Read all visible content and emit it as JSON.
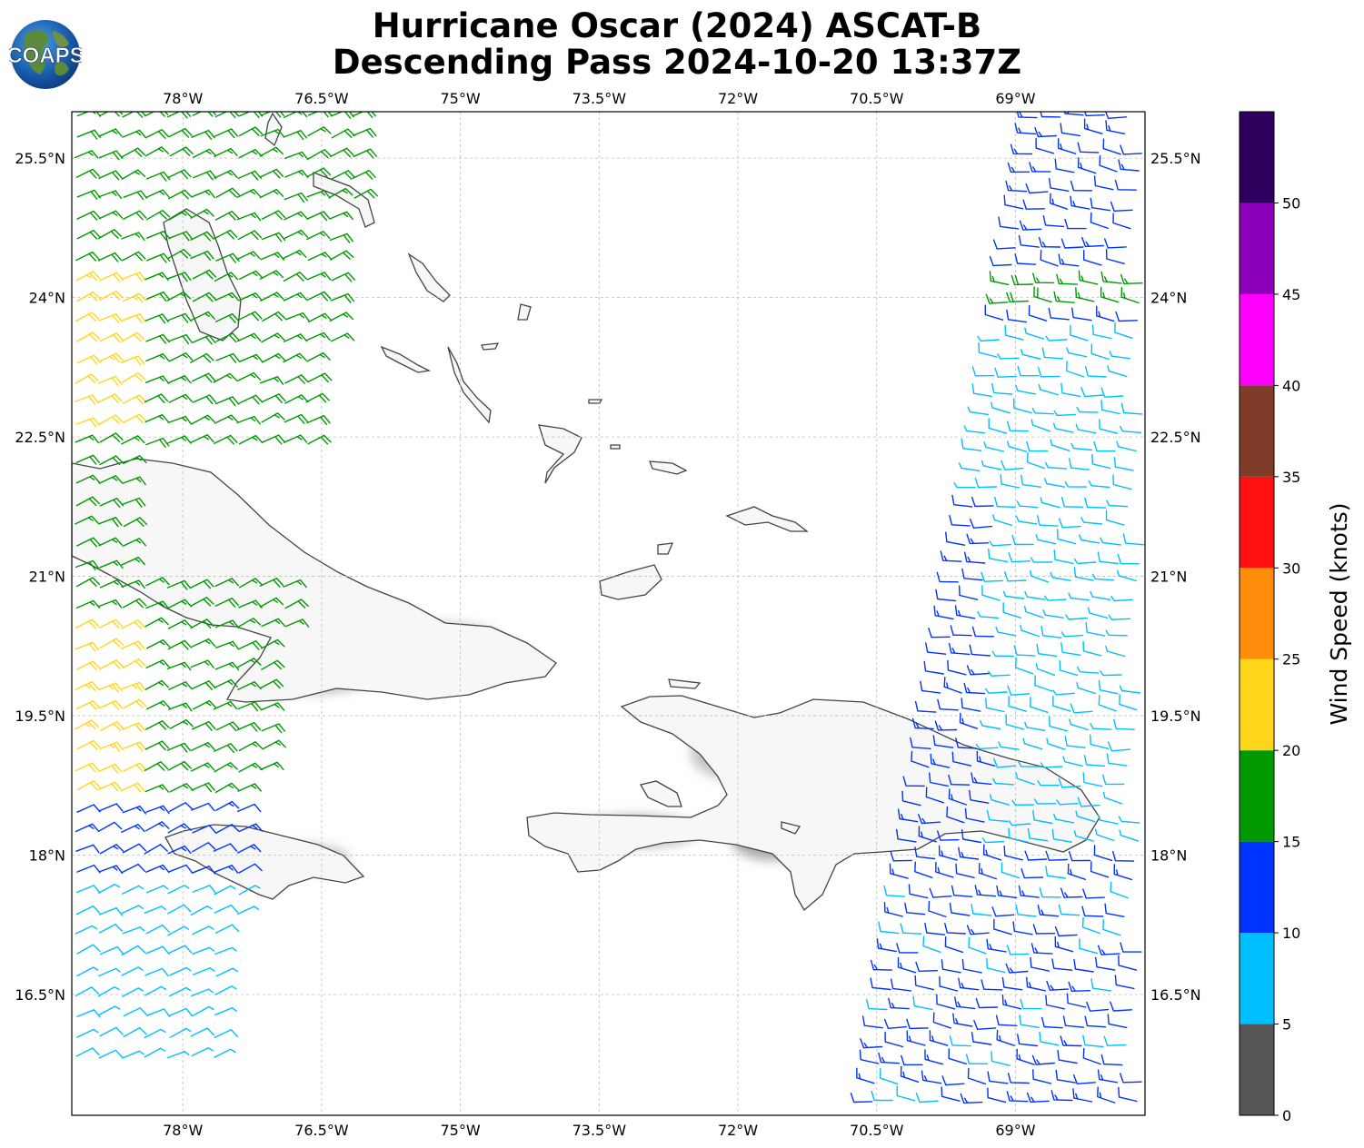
{
  "title_line1": "Hurricane Oscar (2024) ASCAT-B",
  "title_line2": "Descending Pass 2024-10-20 13:37Z",
  "logo_text": "COAPS",
  "map": {
    "lon_range": [
      -79.2,
      -67.6
    ],
    "lat_range": [
      15.2,
      26.0
    ],
    "lon_ticks": [
      -78,
      -76.5,
      -75,
      -73.5,
      -72,
      -70.5,
      -69
    ],
    "lon_tick_labels": [
      "78°W",
      "76.5°W",
      "75°W",
      "73.5°W",
      "72°W",
      "70.5°W",
      "69°W"
    ],
    "lat_ticks": [
      25.5,
      24,
      22.5,
      21,
      19.5,
      18,
      16.5
    ],
    "lat_tick_labels": [
      "25.5°N",
      "24°N",
      "22.5°N",
      "21°N",
      "19.5°N",
      "18°N",
      "16.5°N"
    ],
    "gridlines": true,
    "coastline_color": "#444444",
    "land_shading": "grayscale terrain"
  },
  "colorbar": {
    "label": "Wind Speed (knots)",
    "bounds": [
      0,
      5,
      10,
      15,
      20,
      25,
      30,
      35,
      40,
      45,
      50,
      55
    ],
    "tick_values": [
      0,
      5,
      10,
      15,
      20,
      25,
      30,
      35,
      40,
      45,
      50
    ],
    "tick_labels": [
      "0",
      "5",
      "10",
      "15",
      "20",
      "25",
      "30",
      "35",
      "40",
      "45",
      "50"
    ],
    "colors": [
      "#555555",
      "#00bfff",
      "#0033ff",
      "#009900",
      "#ffd51a",
      "#ff8c0a",
      "#ff1010",
      "#7f3c28",
      "#ff00ff",
      "#8b00b8",
      "#2d005e"
    ]
  },
  "wind_swaths": {
    "west": {
      "lon_range": [
        -79.2,
        -76.0
      ],
      "lat_range": [
        15.6,
        26.0
      ],
      "dominant_speed_knots": "15-20",
      "direction": "from east"
    },
    "east": {
      "lon_range": [
        -70.6,
        -67.6
      ],
      "lat_range": [
        15.2,
        26.0
      ],
      "dominant_speed_knots": "5-15",
      "direction": "from east-southeast"
    }
  }
}
